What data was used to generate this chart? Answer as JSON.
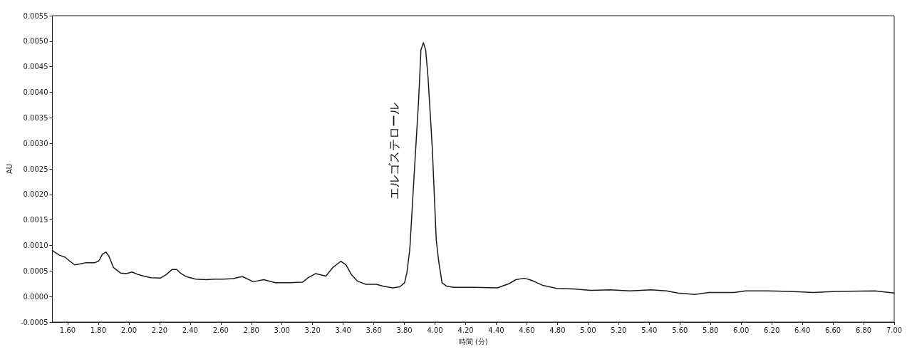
{
  "chart_data": {
    "type": "line",
    "xlabel": "時間 (分)",
    "ylabel": "AU",
    "annotations": [
      "エルゴステロール"
    ],
    "xlim": [
      1.5,
      7.0
    ],
    "ylim": [
      -0.0005,
      0.0055
    ],
    "xticks": [
      {
        "value": 1.6,
        "label": "1.60"
      },
      {
        "value": 1.8,
        "label": "1.80"
      },
      {
        "value": 2.0,
        "label": "2.00"
      },
      {
        "value": 2.2,
        "label": "2.20"
      },
      {
        "value": 2.4,
        "label": "2.40"
      },
      {
        "value": 2.6,
        "label": "2.60"
      },
      {
        "value": 2.8,
        "label": "2.80"
      },
      {
        "value": 3.0,
        "label": "3.00"
      },
      {
        "value": 3.2,
        "label": "3.20"
      },
      {
        "value": 3.4,
        "label": "3.40"
      },
      {
        "value": 3.6,
        "label": "3.60"
      },
      {
        "value": 3.8,
        "label": "3.80"
      },
      {
        "value": 4.0,
        "label": "4.00"
      },
      {
        "value": 4.2,
        "label": "4.20"
      },
      {
        "value": 4.4,
        "label": "4.40"
      },
      {
        "value": 4.6,
        "label": "4.60"
      },
      {
        "value": 4.8,
        "label": "4.80"
      },
      {
        "value": 5.0,
        "label": "5.00"
      },
      {
        "value": 5.2,
        "label": "5.20"
      },
      {
        "value": 5.4,
        "label": "5.40"
      },
      {
        "value": 5.6,
        "label": "5.60"
      },
      {
        "value": 5.8,
        "label": "5.80"
      },
      {
        "value": 6.0,
        "label": "6.00"
      },
      {
        "value": 6.2,
        "label": "6.20"
      },
      {
        "value": 6.4,
        "label": "6.40"
      },
      {
        "value": 6.6,
        "label": "6.60"
      },
      {
        "value": 6.8,
        "label": "6.80"
      },
      {
        "value": 7.0,
        "label": "7.00"
      }
    ],
    "yticks": [
      {
        "value": -0.0005,
        "label": "-0.0005"
      },
      {
        "value": 0,
        "label": "0.0000"
      },
      {
        "value": 0.0005,
        "label": "0.0005"
      },
      {
        "value": 0.001,
        "label": "0.0010"
      },
      {
        "value": 0.0015,
        "label": "0.0015"
      },
      {
        "value": 0.002,
        "label": "0.0020"
      },
      {
        "value": 0.0025,
        "label": "0.0025"
      },
      {
        "value": 0.003,
        "label": "0.0030"
      },
      {
        "value": 0.0035,
        "label": "0.0035"
      },
      {
        "value": 0.004,
        "label": "0.0040"
      },
      {
        "value": 0.0045,
        "label": "0.0045"
      },
      {
        "value": 0.005,
        "label": "0.0050"
      },
      {
        "value": 0.0055,
        "label": "0.0055"
      }
    ],
    "grid": false,
    "marker": "none",
    "line_style": "solid",
    "series": [
      {
        "color": "#1a1a1a",
        "x": [
          1.5,
          1.546,
          1.584,
          1.607,
          1.646,
          1.684,
          1.715,
          1.776,
          1.804,
          1.827,
          1.85,
          1.868,
          1.899,
          1.945,
          1.983,
          2.021,
          2.06,
          2.098,
          2.144,
          2.205,
          2.244,
          2.282,
          2.313,
          2.336,
          2.374,
          2.436,
          2.505,
          2.558,
          2.618,
          2.681,
          2.72,
          2.743,
          2.812,
          2.881,
          2.957,
          3.049,
          3.134,
          3.172,
          3.221,
          3.287,
          3.333,
          3.384,
          3.418,
          3.456,
          3.494,
          3.548,
          3.617,
          3.663,
          3.724,
          3.77,
          3.801,
          3.816,
          3.835,
          3.839,
          3.865,
          3.893,
          3.908,
          3.924,
          3.939,
          3.954,
          3.982,
          4.008,
          4.024,
          4.046,
          4.077,
          4.123,
          4.261,
          4.408,
          4.482,
          4.528,
          4.583,
          4.629,
          4.703,
          4.795,
          4.905,
          5.016,
          5.145,
          5.274,
          5.412,
          5.513,
          5.587,
          5.697,
          5.789,
          5.955,
          6.028,
          6.176,
          6.323,
          6.473,
          6.617,
          6.875,
          7.0
        ],
        "values": [
          0.0009,
          0.00081,
          0.00077,
          0.00071,
          0.00062,
          0.00064,
          0.00066,
          0.00066,
          0.0007,
          0.00083,
          0.00087,
          0.0008,
          0.00057,
          0.00046,
          0.00045,
          0.00048,
          0.00043,
          0.0004,
          0.00037,
          0.00036,
          0.00043,
          0.00053,
          0.00053,
          0.00046,
          0.00039,
          0.00034,
          0.00033,
          0.00034,
          0.00034,
          0.00035,
          0.00038,
          0.00039,
          0.00029,
          0.00033,
          0.00027,
          0.00027,
          0.00028,
          0.00037,
          0.00045,
          0.0004,
          0.00057,
          0.00069,
          0.00062,
          0.00042,
          0.0003,
          0.00024,
          0.00024,
          0.0002,
          0.00017,
          0.00019,
          0.00027,
          0.00046,
          0.00092,
          0.00111,
          0.00245,
          0.00385,
          0.00483,
          0.00497,
          0.00483,
          0.00431,
          0.00292,
          0.00111,
          0.00069,
          0.00027,
          0.0002,
          0.00018,
          0.00018,
          0.00017,
          0.00025,
          0.00033,
          0.00036,
          0.00032,
          0.00022,
          0.00016,
          0.00015,
          0.00012,
          0.00013,
          0.00011,
          0.00013,
          0.00011,
          7e-05,
          4e-05,
          8e-05,
          8e-05,
          0.00011,
          0.00011,
          0.0001,
          8e-05,
          0.0001,
          0.00011,
          7e-05
        ]
      }
    ]
  }
}
